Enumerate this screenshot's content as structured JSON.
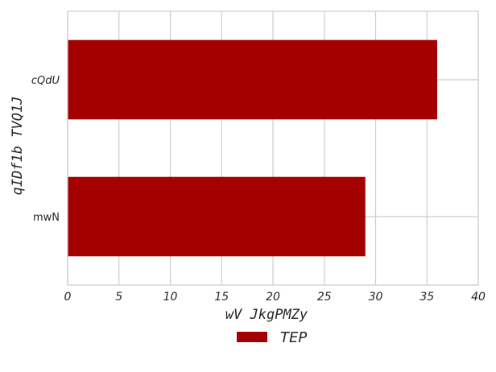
{
  "chart_data": {
    "type": "bar",
    "orientation": "horizontal",
    "categories": [
      "cQdU",
      "mwN"
    ],
    "series": [
      {
        "name": "TEP",
        "values": [
          36,
          29
        ],
        "color": "#a50000"
      }
    ],
    "xlabel": "wV JkgPMZy",
    "ylabel": "qIDf1b TVQ1J",
    "xlim": [
      0,
      40
    ],
    "xticks": [
      0,
      5,
      10,
      15,
      20,
      25,
      30,
      35,
      40
    ],
    "grid": true,
    "legend_position": "bottom-center",
    "colors": {
      "grid": "#cccccc",
      "bar": "#a50000",
      "text": "#262626"
    }
  }
}
